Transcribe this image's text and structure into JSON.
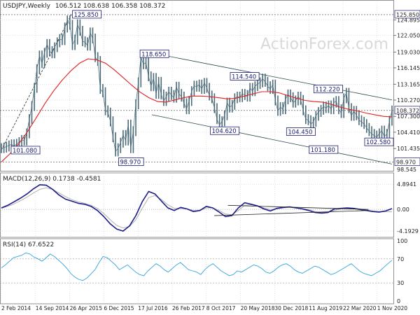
{
  "chart_data": {
    "type": "line",
    "instrument": "USDJPY,Weekly",
    "ohlc_text": "106.512 108.638 106.358 108.372",
    "watermark": "ActionForex.com",
    "x_labels": [
      "2 Feb 2014",
      "14 Sep 2014",
      "26 Apr 2015",
      "6 Dec 2015",
      "17 Jul 2016",
      "26 Feb 2017",
      "8 Oct 2017",
      "20 May 2018",
      "30 Dec 2018",
      "11 Aug 2019",
      "22 Mar 2020",
      "1 Nov 2020"
    ],
    "price_panel": {
      "ylim": [
        97.5,
        127.5
      ],
      "y_ticks": [
        {
          "value": 124.895,
          "label": "124.895"
        },
        {
          "value": 122.05,
          "label": "122.050"
        },
        {
          "value": 119.03,
          "label": "119.030"
        },
        {
          "value": 116.145,
          "label": "116.145"
        },
        {
          "value": 113.165,
          "label": "113.165"
        },
        {
          "value": 110.27,
          "label": "110.270"
        },
        {
          "value": 107.3,
          "label": "107.300"
        },
        {
          "value": 104.41,
          "label": "104.410"
        },
        {
          "value": 101.435,
          "label": "101.435"
        }
      ],
      "highlight_ticks": [
        {
          "value": 125.85,
          "label": "125.850"
        },
        {
          "value": 108.372,
          "label": "108.372"
        },
        {
          "value": 98.97,
          "label": "98.970"
        }
      ],
      "hidden_tick_label": "98.545",
      "close_series": [
        101.5,
        101.6,
        101.8,
        102.0,
        102.2,
        101.8,
        102.3,
        102.6,
        103.0,
        102.9,
        104.2,
        106.8,
        109.2,
        112.5,
        115.9,
        118.4,
        117.0,
        118.9,
        120.5,
        119.2,
        118.8,
        119.9,
        120.8,
        121.4,
        121.2,
        123.5,
        124.8,
        124.0,
        120.3,
        121.3,
        124.1,
        122.9,
        121.0,
        120.8,
        120.2,
        122.6,
        121.5,
        118.1,
        117.4,
        112.3,
        111.7,
        108.4,
        108.0,
        106.4,
        103.5,
        100.9,
        101.5,
        102.5,
        103.9,
        102.9,
        105.8,
        101.5,
        104.6,
        109.5,
        113.5,
        118.1,
        116.8,
        117.1,
        114.6,
        112.8,
        114.3,
        111.4,
        113.6,
        111.3,
        110.1,
        110.9,
        111.8,
        111.2,
        110.7,
        112.7,
        111.4,
        110.9,
        109.7,
        108.6,
        110.1,
        111.9,
        112.9,
        112.7,
        113.1,
        112.3,
        113.4,
        112.5,
        111.1,
        110.6,
        108.8,
        106.8,
        105.7,
        106.4,
        107.5,
        109.8,
        108.9,
        109.4,
        110.6,
        110.9,
        110.8,
        111.4,
        111.2,
        110.9,
        112.5,
        111.9,
        112.8,
        113.2,
        113.5,
        114.2,
        113.6,
        112.8,
        112.3,
        113.1,
        110.2,
        108.3,
        109.0,
        108.6,
        110.4,
        111.3,
        110.8,
        109.8,
        110.2,
        110.9,
        110.3,
        108.4,
        106.8,
        106.6,
        105.9,
        106.3,
        107.4,
        108.1,
        108.5,
        109.1,
        108.8,
        109.3,
        108.6,
        109.8,
        110.1,
        108.6,
        107.9,
        110.6,
        111.6,
        108.8,
        107.4,
        108.3,
        107.5,
        106.6,
        106.3,
        105.9,
        105.2,
        104.6,
        104.1,
        103.8,
        103.5,
        104.2,
        104.7,
        103.6,
        104.1,
        106.5,
        108.372
      ],
      "ma_series": [
        99.0,
        100.5,
        102.3,
        104.5,
        107.0,
        109.6,
        111.9,
        113.9,
        115.6,
        117.0,
        117.8,
        117.6,
        117.0,
        115.8,
        114.4,
        113.0,
        111.7,
        110.7,
        110.0,
        109.9,
        110.3,
        110.7,
        111.0,
        111.0,
        110.9,
        110.7,
        110.5,
        110.6,
        111.0,
        111.4,
        111.8,
        111.8,
        111.6,
        111.1,
        110.6,
        110.2,
        110.0,
        109.9,
        109.5,
        109.0,
        108.6,
        108.3,
        107.9,
        107.6,
        107.3,
        107.2
      ],
      "resistance_line": {
        "x": [
          0.375,
          1.0
        ],
        "y": [
          119.0,
          110.3
        ]
      },
      "support_line": {
        "x": [
          0.385,
          1.0
        ],
        "y": [
          107.6,
          98.6
        ]
      },
      "trend_line_dashed": {
        "x": [
          0.0,
          0.18
        ],
        "y": [
          101.2,
          126.0
        ]
      },
      "annotations": [
        {
          "label": "125.850",
          "x": 0.182,
          "y": 125.85,
          "cx": 0.18,
          "cy": 126.0
        },
        {
          "label": "118.650",
          "x": 0.355,
          "y": 118.65,
          "cx": 0.382,
          "cy": 118.7
        },
        {
          "label": "114.540",
          "x": 0.586,
          "y": 114.54,
          "cx": 0.614,
          "cy": 114.4
        },
        {
          "label": "112.220",
          "x": 0.8,
          "y": 112.22,
          "cx": 0.83,
          "cy": 112.3
        },
        {
          "label": "104.620",
          "x": 0.535,
          "y": 104.62,
          "cx": 0.552,
          "cy": 105.3
        },
        {
          "label": "104.450",
          "x": 0.73,
          "y": 104.45,
          "cx": 0.74,
          "cy": 104.8
        },
        {
          "label": "101.180",
          "x": 0.788,
          "y": 101.18,
          "cx": 0.83,
          "cy": 101.2
        },
        {
          "label": "102.580",
          "x": 0.93,
          "y": 102.58,
          "cx": 0.94,
          "cy": 103.3
        },
        {
          "label": "98.970",
          "x": 0.3,
          "y": 98.97,
          "cx": 0.33,
          "cy": 99.0
        },
        {
          "label": "101.080",
          "x": 0.025,
          "y": 101.08,
          "cx": 0.0,
          "cy": 101.1
        }
      ]
    },
    "macd_panel": {
      "title": "MACD(12,26,9) 0.1738 -0.4581",
      "ylim": [
        -5.0,
        5.6
      ],
      "y_ticks": [
        {
          "value": 4.8941,
          "label": "4.8941"
        },
        {
          "value": 0.0,
          "label": "0.00"
        },
        {
          "value": -4.1929,
          "label": "-4.1929"
        }
      ],
      "macd_series": [
        0.3,
        0.8,
        1.5,
        2.2,
        3.0,
        4.0,
        4.8,
        4.7,
        3.9,
        2.8,
        2.0,
        1.6,
        1.2,
        1.0,
        0.6,
        -0.2,
        -1.4,
        -2.8,
        -3.8,
        -4.2,
        -3.2,
        -1.2,
        1.5,
        3.5,
        3.0,
        1.6,
        0.3,
        -0.2,
        0.4,
        0.1,
        -0.4,
        -0.2,
        0.6,
        0.3,
        -0.5,
        -1.4,
        -1.2,
        0.3,
        1.3,
        1.0,
        0.7,
        0.1,
        -0.3,
        0.2,
        0.4,
        0.5,
        0.3,
        0.1,
        -0.2,
        -0.6,
        -0.7,
        -0.6,
        0.1,
        0.2,
        0.3,
        0.2,
        0.0,
        -0.2,
        -0.4,
        -0.5,
        -0.3,
        0.17
      ],
      "signal_series": [
        0.2,
        0.6,
        1.1,
        1.7,
        2.4,
        3.2,
        3.9,
        4.2,
        3.9,
        3.2,
        2.5,
        1.9,
        1.5,
        1.2,
        0.8,
        0.2,
        -0.8,
        -2.0,
        -3.1,
        -3.6,
        -3.3,
        -2.0,
        0.2,
        2.3,
        2.7,
        1.9,
        0.9,
        0.2,
        0.2,
        0.1,
        -0.2,
        -0.2,
        0.3,
        0.3,
        -0.2,
        -0.9,
        -1.0,
        -0.2,
        0.8,
        0.9,
        0.7,
        0.3,
        0.0,
        0.1,
        0.3,
        0.4,
        0.3,
        0.2,
        0.0,
        -0.4,
        -0.6,
        -0.6,
        -0.2,
        0.1,
        0.2,
        0.2,
        0.1,
        -0.1,
        -0.3,
        -0.4,
        -0.4,
        -0.46
      ],
      "upper_trend": {
        "x": [
          0.58,
          0.94
        ],
        "y": [
          0.8,
          0.0
        ]
      },
      "lower_trend": {
        "x": [
          0.545,
          0.94
        ],
        "y": [
          -1.2,
          -0.2
        ]
      }
    },
    "rsi_panel": {
      "title": "RSI(14) 67.6522",
      "ylim": [
        0,
        100
      ],
      "y_ticks": [
        {
          "value": 100,
          "label": "100"
        },
        {
          "value": 70,
          "label": "70"
        },
        {
          "value": 30,
          "label": "30"
        },
        {
          "value": 0,
          "label": "0"
        }
      ],
      "rsi_series": [
        55,
        60,
        66,
        72,
        74,
        76,
        80,
        78,
        73,
        70,
        66,
        72,
        78,
        74,
        68,
        62,
        55,
        46,
        40,
        36,
        34,
        38,
        45,
        52,
        64,
        74,
        72,
        66,
        60,
        52,
        56,
        60,
        54,
        48,
        44,
        42,
        50,
        56,
        62,
        58,
        52,
        48,
        54,
        60,
        64,
        58,
        52,
        50,
        48,
        44,
        52,
        58,
        62,
        56,
        50,
        46,
        42,
        44,
        50,
        48,
        52,
        56,
        60,
        58,
        54,
        48,
        46,
        50,
        56,
        60,
        62,
        58,
        52,
        48,
        46,
        50,
        54,
        58,
        56,
        52,
        48,
        44,
        46,
        50,
        54,
        58,
        62,
        56,
        50,
        46,
        44,
        42,
        46,
        50,
        56,
        62,
        67.6522
      ]
    }
  }
}
